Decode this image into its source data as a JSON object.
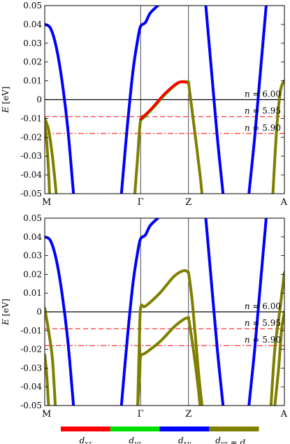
{
  "figure": {
    "colorbar": {
      "colors": [
        "#ff0000",
        "#00e000",
        "#0000ff",
        "#7f7f00"
      ],
      "labels": [
        "d_xz",
        "d_yz",
        "d_xy",
        "d_yz ≈ d_xz"
      ]
    }
  },
  "chart_data": [
    {
      "type": "line",
      "ylabel": "E [eV]",
      "ylim": [
        -0.05,
        0.05
      ],
      "yticks": [
        0.05,
        0.04,
        0.03,
        0.02,
        0.01,
        0,
        -0.01,
        -0.02,
        -0.03,
        -0.04,
        -0.05
      ],
      "ytick_labels": [
        "0.05",
        "0.04",
        "0.03",
        "0.02",
        "0.01",
        "0",
        "-0.01",
        "-0.02",
        "-0.03",
        "-0.04",
        "-0.05"
      ],
      "k_path": [
        "M",
        "Γ",
        "Z",
        "A"
      ],
      "k_positions": [
        0,
        1,
        1.5,
        2.5
      ],
      "reference_lines": [
        {
          "label": "n = 6.00",
          "y": 0,
          "style": "solid",
          "color": "#000000"
        },
        {
          "label": "n = 5.95",
          "y": -0.009,
          "style": "dashed",
          "color": "#ff0000"
        },
        {
          "label": "n = 5.90",
          "y": -0.018,
          "style": "dashdot",
          "color": "#ff0000"
        }
      ],
      "series": [
        {
          "orbital": "d_xy",
          "color": "#0000ff",
          "points": [
            [
              0,
              0.04
            ],
            [
              0.06,
              0.038
            ],
            [
              0.12,
              0.028
            ],
            [
              0.18,
              0.01
            ],
            [
              0.24,
              -0.015
            ],
            [
              0.3,
              -0.05
            ]
          ]
        },
        {
          "orbital": "d_xy",
          "color": "#0000ff",
          "points": [
            [
              0.8,
              -0.05
            ],
            [
              0.86,
              -0.015
            ],
            [
              0.92,
              0.015
            ],
            [
              0.97,
              0.032
            ],
            [
              1.0,
              0.039
            ],
            [
              1.05,
              0.041
            ],
            [
              1.1,
              0.046
            ],
            [
              1.18,
              0.05
            ]
          ]
        },
        {
          "orbital": "d_xy",
          "color": "#0000ff",
          "points": [
            [
              1.68,
              0.05
            ],
            [
              1.74,
              0.015
            ],
            [
              1.8,
              -0.02
            ],
            [
              1.86,
              -0.05
            ]
          ]
        },
        {
          "orbital": "d_xy",
          "color": "#0000ff",
          "points": [
            [
              2.13,
              -0.05
            ],
            [
              2.19,
              -0.02
            ],
            [
              2.25,
              0.015
            ],
            [
              2.31,
              0.05
            ]
          ]
        },
        {
          "orbital": "d_yz ≈ d_xz",
          "color": "#7f7f00",
          "points": [
            [
              0,
              -0.01
            ],
            [
              0.04,
              -0.016
            ],
            [
              0.08,
              -0.03
            ],
            [
              0.12,
              -0.05
            ]
          ]
        },
        {
          "orbital": "d_yz ≈ d_xz",
          "color": "#7f7f00",
          "points": [
            [
              0,
              -0.013
            ],
            [
              0.02,
              -0.022
            ],
            [
              0.04,
              -0.038
            ],
            [
              0.05,
              -0.05
            ]
          ]
        },
        {
          "orbital": "d_yz ≈ d_xz",
          "color": "#7f7f00",
          "points": [
            [
              0.94,
              -0.05
            ],
            [
              0.97,
              -0.03
            ],
            [
              1.0,
              -0.011
            ],
            [
              1.05,
              -0.009
            ]
          ]
        },
        {
          "orbital": "d_yz",
          "color": "#00e000",
          "points": [
            [
              1.0,
              -0.011
            ],
            [
              1.12,
              -0.005
            ],
            [
              1.26,
              0.003
            ],
            [
              1.4,
              0.009
            ],
            [
              1.5,
              0.0095
            ]
          ]
        },
        {
          "orbital": "d_xz",
          "color": "#ff0000",
          "points": [
            [
              1.0,
              -0.0105
            ],
            [
              1.12,
              -0.0045
            ],
            [
              1.26,
              0.0035
            ],
            [
              1.4,
              0.0092
            ],
            [
              1.5,
              0.009
            ]
          ]
        },
        {
          "orbital": "d_yz ≈ d_xz",
          "color": "#7f7f00",
          "points": [
            [
              1.5,
              0.009
            ],
            [
              1.56,
              -0.015
            ],
            [
              1.62,
              -0.04
            ],
            [
              1.64,
              -0.05
            ]
          ]
        },
        {
          "orbital": "d_yz ≈ d_xz",
          "color": "#7f7f00",
          "points": [
            [
              2.38,
              -0.05
            ],
            [
              2.42,
              -0.015
            ],
            [
              2.46,
              0.005
            ],
            [
              2.5,
              0.01
            ]
          ]
        }
      ]
    },
    {
      "type": "line",
      "ylabel": "E [eV]",
      "ylim": [
        -0.05,
        0.05
      ],
      "yticks": [
        0.05,
        0.04,
        0.03,
        0.02,
        0.01,
        0,
        -0.01,
        -0.02,
        -0.03,
        -0.04,
        -0.05
      ],
      "ytick_labels": [
        "0.05",
        "0.04",
        "0.03",
        "0.02",
        "0.01",
        "0",
        "-0.01",
        "-0.02",
        "-0.03",
        "-0.04",
        "-0.05"
      ],
      "k_path": [
        "M",
        "Γ",
        "Z",
        "A"
      ],
      "k_positions": [
        0,
        1,
        1.5,
        2.5
      ],
      "reference_lines": [
        {
          "label": "n = 6.00",
          "y": 0,
          "style": "solid",
          "color": "#000000"
        },
        {
          "label": "n = 5.95",
          "y": -0.009,
          "style": "dashed",
          "color": "#ff0000"
        },
        {
          "label": "n = 5.90",
          "y": -0.018,
          "style": "dashdot",
          "color": "#ff0000"
        }
      ],
      "series": [
        {
          "orbital": "d_xy",
          "color": "#0000ff",
          "points": [
            [
              0,
              0.04
            ],
            [
              0.06,
              0.038
            ],
            [
              0.12,
              0.028
            ],
            [
              0.18,
              0.01
            ],
            [
              0.24,
              -0.015
            ],
            [
              0.3,
              -0.05
            ]
          ]
        },
        {
          "orbital": "d_xy",
          "color": "#0000ff",
          "points": [
            [
              0.8,
              -0.05
            ],
            [
              0.86,
              -0.015
            ],
            [
              0.92,
              0.015
            ],
            [
              0.97,
              0.032
            ],
            [
              1.0,
              0.039
            ],
            [
              1.05,
              0.041
            ],
            [
              1.1,
              0.046
            ],
            [
              1.18,
              0.05
            ]
          ]
        },
        {
          "orbital": "d_xy",
          "color": "#0000ff",
          "points": [
            [
              1.68,
              0.05
            ],
            [
              1.74,
              0.015
            ],
            [
              1.8,
              -0.02
            ],
            [
              1.86,
              -0.05
            ]
          ]
        },
        {
          "orbital": "d_xy",
          "color": "#0000ff",
          "points": [
            [
              2.13,
              -0.05
            ],
            [
              2.19,
              -0.02
            ],
            [
              2.25,
              0.015
            ],
            [
              2.31,
              0.05
            ]
          ]
        },
        {
          "orbital": "d_yz ≈ d_xz",
          "color": "#7f7f00",
          "points": [
            [
              0,
              0.002
            ],
            [
              0.04,
              -0.01
            ],
            [
              0.08,
              -0.025
            ],
            [
              0.11,
              -0.05
            ]
          ]
        },
        {
          "orbital": "d_yz ≈ d_xz",
          "color": "#7f7f00",
          "points": [
            [
              0,
              -0.023
            ],
            [
              0.02,
              -0.033
            ],
            [
              0.04,
              -0.05
            ]
          ]
        },
        {
          "orbital": "d_yz ≈ d_xz",
          "color": "#7f7f00",
          "points": [
            [
              0.97,
              -0.05
            ],
            [
              0.985,
              -0.02
            ],
            [
              1.0,
              0.002
            ],
            [
              1.05,
              0.003
            ],
            [
              1.2,
              0.01
            ],
            [
              1.35,
              0.019
            ],
            [
              1.45,
              0.022
            ],
            [
              1.5,
              0.021
            ]
          ]
        },
        {
          "orbital": "d_yz ≈ d_xz",
          "color": "#7f7f00",
          "points": [
            [
              0.97,
              -0.05
            ],
            [
              0.99,
              -0.035
            ],
            [
              1.0,
              -0.024
            ],
            [
              1.05,
              -0.022
            ],
            [
              1.2,
              -0.016
            ],
            [
              1.35,
              -0.008
            ],
            [
              1.45,
              -0.004
            ],
            [
              1.5,
              -0.003
            ]
          ]
        },
        {
          "orbital": "d_yz ≈ d_xz",
          "color": "#7f7f00",
          "points": [
            [
              1.5,
              0.021
            ],
            [
              1.54,
              0.005
            ],
            [
              1.6,
              -0.03
            ],
            [
              1.64,
              -0.05
            ]
          ]
        },
        {
          "orbital": "d_yz ≈ d_xz",
          "color": "#7f7f00",
          "points": [
            [
              1.5,
              -0.003
            ],
            [
              1.55,
              -0.02
            ],
            [
              1.6,
              -0.04
            ],
            [
              1.62,
              -0.05
            ]
          ]
        },
        {
          "orbital": "d_yz ≈ d_xz",
          "color": "#7f7f00",
          "points": [
            [
              2.36,
              -0.05
            ],
            [
              2.4,
              -0.02
            ],
            [
              2.45,
              0.0
            ],
            [
              2.5,
              0.021
            ]
          ]
        },
        {
          "orbital": "d_yz ≈ d_xz",
          "color": "#7f7f00",
          "points": [
            [
              2.4,
              -0.05
            ],
            [
              2.44,
              -0.03
            ],
            [
              2.47,
              -0.01
            ],
            [
              2.5,
              0.0
            ]
          ]
        }
      ]
    }
  ]
}
